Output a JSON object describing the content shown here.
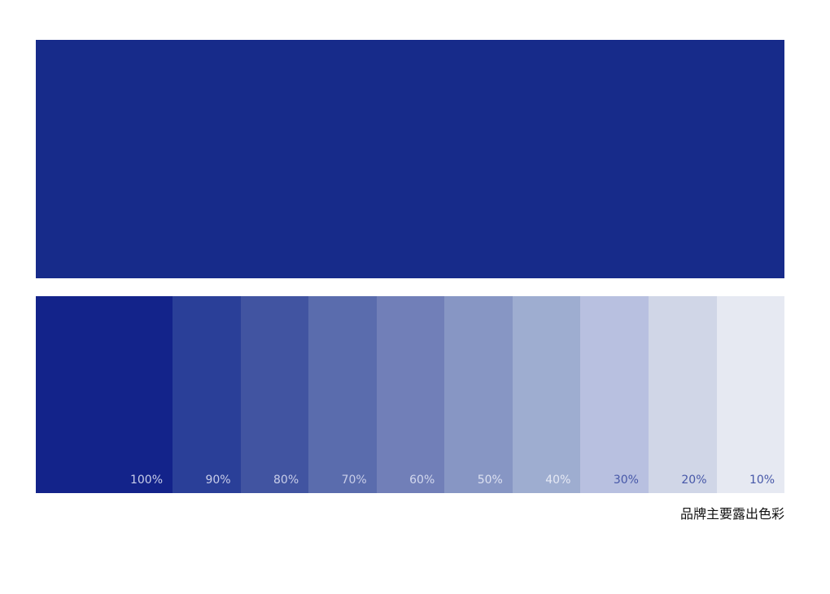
{
  "main_color": "#172b8a",
  "swatches": [
    {
      "label": "100%",
      "color": "#13238a",
      "label_color": "#c9cee9"
    },
    {
      "label": "90%",
      "color": "#2a3f98",
      "label_color": "#c9cee9"
    },
    {
      "label": "80%",
      "color": "#4154a1",
      "label_color": "#c9cee9"
    },
    {
      "label": "70%",
      "color": "#5a6cad",
      "label_color": "#c9cee9"
    },
    {
      "label": "60%",
      "color": "#717fb8",
      "label_color": "#d4d9ee"
    },
    {
      "label": "50%",
      "color": "#8796c4",
      "label_color": "#dde1f1"
    },
    {
      "label": "40%",
      "color": "#9eadd0",
      "label_color": "#e6e9f4"
    },
    {
      "label": "30%",
      "color": "#b8c0e0",
      "label_color": "#4657a8"
    },
    {
      "label": "20%",
      "color": "#d0d6e7",
      "label_color": "#4657a8"
    },
    {
      "label": "10%",
      "color": "#e6e9f2",
      "label_color": "#4657a8"
    }
  ],
  "caption": "品牌主要露出色彩"
}
